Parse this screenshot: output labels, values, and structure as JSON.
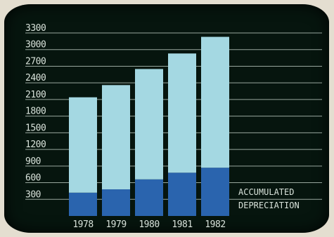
{
  "chart_data": {
    "type": "bar",
    "title": "",
    "xlabel": "",
    "ylabel": "",
    "categories": [
      "1978",
      "1979",
      "1980",
      "1981",
      "1982"
    ],
    "ylim": [
      0,
      3300
    ],
    "yticks": [
      "300",
      "600",
      "900",
      "1200",
      "1500",
      "1800",
      "2100",
      "2400",
      "2700",
      "3000",
      "3300"
    ],
    "grid": true,
    "legend_position": "bottom-right",
    "series": [
      {
        "name": "ACCUMULATED DEPRECIATION",
        "values": [
          420,
          480,
          660,
          780,
          870
        ],
        "color": "#2a64ae"
      },
      {
        "name": "",
        "values": [
          1720,
          1880,
          1990,
          2150,
          2360
        ],
        "color": "#a4d8e2"
      }
    ],
    "annotation": [
      "ACCUMULATED",
      "DEPRECIATION"
    ],
    "colors": {
      "background": "#06150e",
      "grid": "#c9d8cf",
      "text": "#d8e2da"
    }
  }
}
